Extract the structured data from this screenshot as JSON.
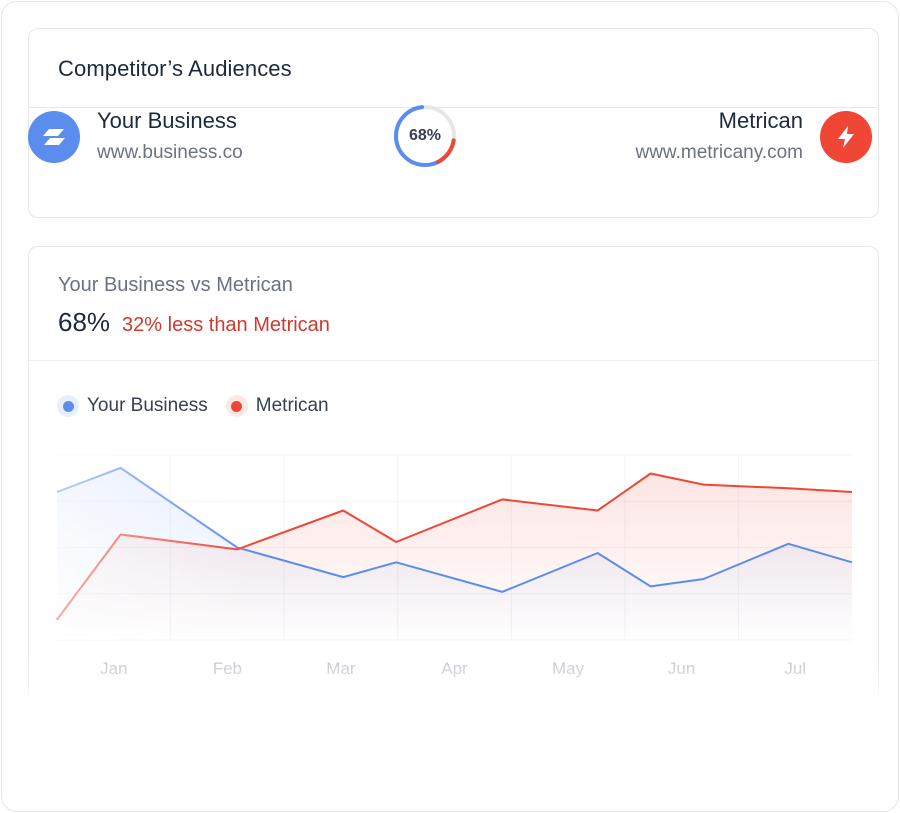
{
  "card": {
    "title": "Competitor’s Audiences"
  },
  "your_business": {
    "name": "Your Business",
    "url": "www.business.co",
    "color": "#5b8def",
    "icon": "stacked-stripes-icon"
  },
  "competitor": {
    "name": "Metrican",
    "url": "www.metricany.com",
    "color": "#ef4636",
    "icon": "lightning-bolt-icon"
  },
  "ring": {
    "label": "68%",
    "value": 68
  },
  "comparison": {
    "subtitle": "Your Business vs Metrican",
    "percent": "68%",
    "difference": "32% less than Metrican"
  },
  "chart_data": {
    "type": "area",
    "categories": [
      "Jan",
      "Feb",
      "Mar",
      "Apr",
      "May",
      "Jun",
      "Jul"
    ],
    "x": [
      0,
      0.6,
      1.7,
      2.7,
      3.2,
      4.2,
      5.1,
      5.6,
      6.1,
      6.9,
      7.5
    ],
    "series": [
      {
        "name": "Your Business",
        "color": "#5b8def",
        "values": [
          80,
          93,
          50,
          34,
          42,
          26,
          47,
          29,
          33,
          52,
          42
        ]
      },
      {
        "name": "Metrican",
        "color": "#ef4636",
        "values": [
          11,
          57,
          49,
          70,
          53,
          76,
          70,
          90,
          84,
          82,
          80
        ]
      }
    ],
    "ylim": [
      0,
      100
    ],
    "grid": true,
    "legend": "top-left",
    "xlabel": "",
    "ylabel": ""
  }
}
